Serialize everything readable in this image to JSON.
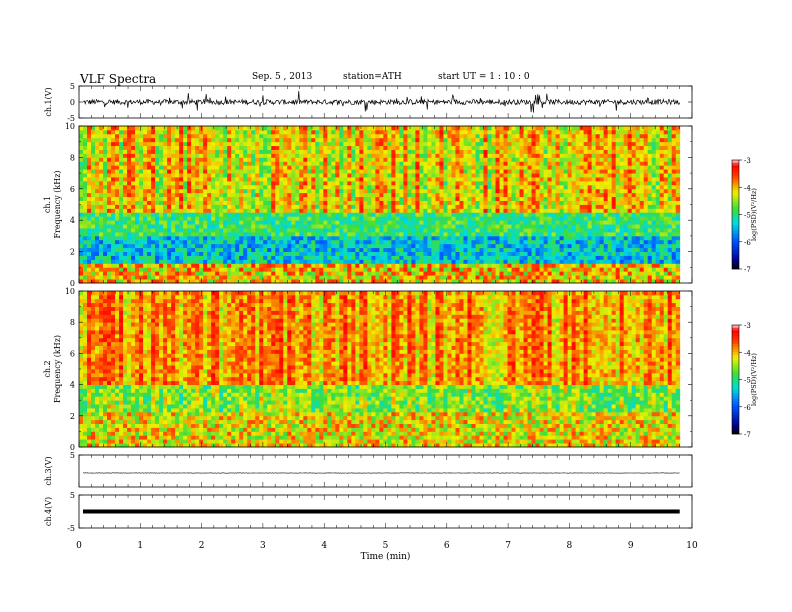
{
  "header": {
    "title": "VLF  Spectra",
    "date": "Sep. 5  , 2013",
    "station": "station=ATH",
    "start": "start  UT  =   1 : 10 : 0"
  },
  "chart_data": [
    {
      "type": "line",
      "panel": "ch1-waveform",
      "ylabel": "ch.1(V)",
      "ylim": [
        -5,
        5
      ],
      "yticks": [
        "5",
        "0",
        "-5"
      ],
      "xlim": [
        0,
        10
      ]
    },
    {
      "type": "heatmap",
      "panel": "ch1-spectrogram",
      "ylabel": [
        "ch.1",
        "Frequency  (kHz)"
      ],
      "ylim": [
        0,
        10
      ],
      "yticks": [
        "0",
        "2",
        "4",
        "6",
        "8",
        "10"
      ],
      "xlim": [
        0,
        10
      ],
      "data_end_min": 9.8,
      "colorbar": {
        "label": "log(PSD)(V²/Hz)",
        "range": [
          -7,
          -3
        ],
        "ticks": [
          "-3",
          "-4",
          "-5",
          "-6",
          "-7"
        ]
      }
    },
    {
      "type": "heatmap",
      "panel": "ch2-spectrogram",
      "ylabel": [
        "ch.2",
        "Frequency  (kHz)"
      ],
      "ylim": [
        0,
        10
      ],
      "yticks": [
        "0",
        "2",
        "4",
        "6",
        "8",
        "10"
      ],
      "xlim": [
        0,
        10
      ],
      "data_end_min": 9.8,
      "colorbar": {
        "label": "log(PSD)(V²/Hz)",
        "range": [
          -7,
          -3
        ],
        "ticks": [
          "-3",
          "-4",
          "-5",
          "-6",
          "-7"
        ]
      }
    },
    {
      "type": "line",
      "panel": "ch3-waveform",
      "ylabel": "ch.3(V)",
      "ylim": [
        -5,
        5
      ],
      "yticks": [
        "5"
      ],
      "xlim": [
        0,
        10
      ]
    },
    {
      "type": "line",
      "panel": "ch4-waveform",
      "ylabel": "ch.4(V)",
      "ylim": [
        -5,
        5
      ],
      "yticks": [
        "5",
        "-5"
      ],
      "xlim": [
        0,
        10
      ],
      "xlabel": "Time  (min)",
      "xticks": [
        "0",
        "1",
        "2",
        "3",
        "4",
        "5",
        "6",
        "7",
        "8",
        "9",
        "10"
      ]
    }
  ]
}
